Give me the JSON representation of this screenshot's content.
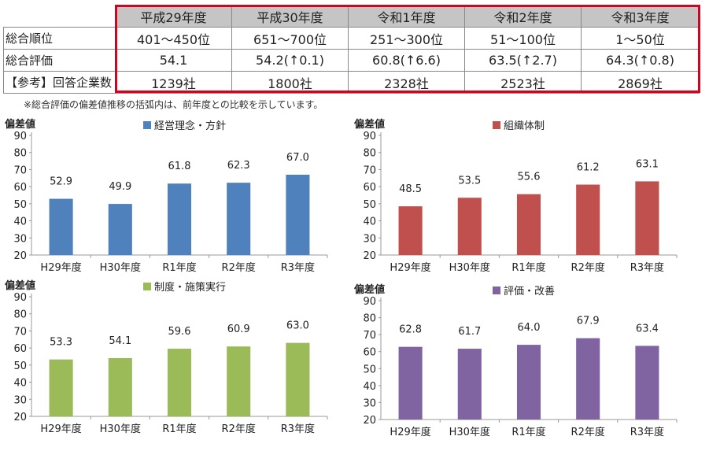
{
  "summary": {
    "years": [
      "平成29年度",
      "平成30年度",
      "令和1年度",
      "令和2年度",
      "令和3年度"
    ],
    "rows": [
      {
        "label": "総合順位",
        "values": [
          "401～450位",
          "651～700位",
          "251～300位",
          "51～100位",
          "1～50位"
        ]
      },
      {
        "label": "総合評価",
        "values": [
          "54.1",
          "54.2(↑0.1)",
          "60.8(↑6.6)",
          "63.5(↑2.7)",
          "64.3(↑0.8)"
        ]
      },
      {
        "label": "【参考】回答企業数",
        "values": [
          "1239社",
          "1800社",
          "2328社",
          "2523社",
          "2869社"
        ]
      }
    ]
  },
  "note": "※総合評価の偏差値推移の括弧内は、前年度との比較を示しています。",
  "colors": {
    "highlight": "#d8001c",
    "header_bg": "#c5c5c5"
  },
  "chart_data": [
    {
      "type": "bar",
      "ylabel": "偏差値",
      "legend": "経営理念・方針",
      "color": "#4f81bd",
      "categories": [
        "H29年度",
        "H30年度",
        "R1年度",
        "R2年度",
        "R3年度"
      ],
      "values": [
        52.9,
        49.9,
        61.8,
        62.3,
        67.0
      ],
      "data_labels": [
        "52.9",
        "49.9",
        "61.8",
        "62.3",
        "67.0"
      ],
      "ylim": [
        20,
        90
      ],
      "yticks": [
        "20",
        "30",
        "40",
        "50",
        "60",
        "70",
        "80",
        "90"
      ],
      "grid": false,
      "legend_position": "top"
    },
    {
      "type": "bar",
      "ylabel": "偏差値",
      "legend": "組織体制",
      "color": "#c0504d",
      "categories": [
        "H29年度",
        "H30年度",
        "R1年度",
        "R2年度",
        "R3年度"
      ],
      "values": [
        48.5,
        53.5,
        55.6,
        61.2,
        63.1
      ],
      "data_labels": [
        "48.5",
        "53.5",
        "55.6",
        "61.2",
        "63.1"
      ],
      "ylim": [
        20,
        90
      ],
      "yticks": [
        "20",
        "30",
        "40",
        "50",
        "60",
        "70",
        "80",
        "90"
      ],
      "grid": false,
      "legend_position": "top"
    },
    {
      "type": "bar",
      "ylabel": "偏差値",
      "legend": "制度・施策実行",
      "color": "#9bbb59",
      "categories": [
        "H29年度",
        "H30年度",
        "R1年度",
        "R2年度",
        "R3年度"
      ],
      "values": [
        53.3,
        54.1,
        59.6,
        60.9,
        63.0
      ],
      "data_labels": [
        "53.3",
        "54.1",
        "59.6",
        "60.9",
        "63.0"
      ],
      "ylim": [
        20,
        90
      ],
      "yticks": [
        "20",
        "30",
        "40",
        "50",
        "60",
        "70",
        "80",
        "90"
      ],
      "grid": false,
      "legend_position": "top"
    },
    {
      "type": "bar",
      "ylabel": "偏差値",
      "legend": "評価・改善",
      "color": "#8064a2",
      "categories": [
        "H29年度",
        "H30年度",
        "R1年度",
        "R2年度",
        "R3年度"
      ],
      "values": [
        62.8,
        61.7,
        64.0,
        67.9,
        63.4
      ],
      "data_labels": [
        "62.8",
        "61.7",
        "64.0",
        "67.9",
        "63.4"
      ],
      "ylim": [
        20,
        90
      ],
      "yticks": [
        "20",
        "30",
        "40",
        "50",
        "60",
        "70",
        "80",
        "90"
      ],
      "grid": false,
      "legend_position": "top"
    }
  ]
}
